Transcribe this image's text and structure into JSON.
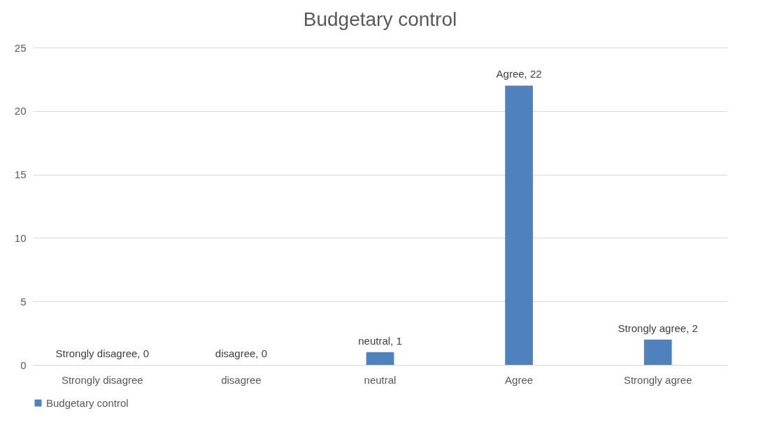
{
  "chart_data": {
    "type": "bar",
    "title": "Budgetary control",
    "categories": [
      "Strongly disagree",
      "disagree",
      "neutral",
      "Agree",
      "Strongly agree"
    ],
    "series": [
      {
        "name": "Budgetary control",
        "color": "#4f81bd",
        "values": [
          0,
          0,
          1,
          22,
          2
        ]
      }
    ],
    "value_labels": [
      "Strongly disagree, 0",
      "disagree, 0",
      "neutral, 1",
      "Agree, 22",
      "Strongly agree, 2"
    ],
    "ylim": [
      0,
      25
    ],
    "yticks": [
      0,
      5,
      10,
      15,
      20,
      25
    ],
    "grid": "y",
    "legend": "bottom"
  }
}
